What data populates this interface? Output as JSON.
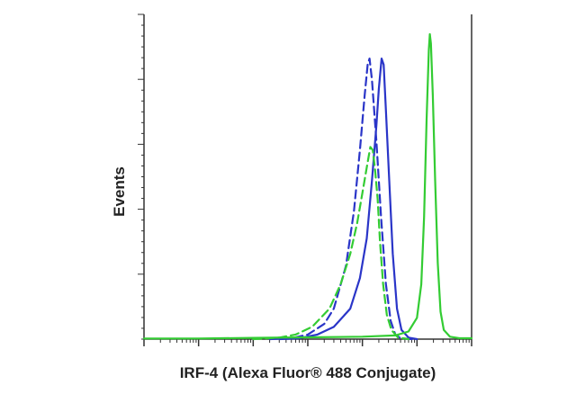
{
  "chart_data": {
    "type": "line",
    "title": "",
    "xlabel": "IRF-4 (Alexa Fluor® 488 Conjugate)",
    "ylabel": "Events",
    "x_scale": "log",
    "xlim": [
      1,
      1000000
    ],
    "ylim": [
      0,
      100
    ],
    "grid": false,
    "legend": "none",
    "series": [
      {
        "color": "#2a35c8",
        "dash": "dashed",
        "points": [
          [
            200,
            0
          ],
          [
            500,
            0.3
          ],
          [
            1000,
            1.5
          ],
          [
            2000,
            5
          ],
          [
            3000,
            10
          ],
          [
            5000,
            24
          ],
          [
            7000,
            42
          ],
          [
            9000,
            62
          ],
          [
            11000,
            80
          ],
          [
            12500,
            90
          ],
          [
            13500,
            92
          ],
          [
            15000,
            85
          ],
          [
            18000,
            65
          ],
          [
            22000,
            40
          ],
          [
            27000,
            18
          ],
          [
            33000,
            6
          ],
          [
            40000,
            1.5
          ],
          [
            50000,
            0.3
          ],
          [
            80000,
            0
          ]
        ]
      },
      {
        "color": "#2a35c8",
        "dash": "solid",
        "points": [
          [
            300,
            0
          ],
          [
            700,
            0.3
          ],
          [
            1500,
            1.5
          ],
          [
            3000,
            4
          ],
          [
            6000,
            10
          ],
          [
            9000,
            20
          ],
          [
            12000,
            33
          ],
          [
            15000,
            52
          ],
          [
            18000,
            70
          ],
          [
            20000,
            82
          ],
          [
            22500,
            92
          ],
          [
            24500,
            90
          ],
          [
            27000,
            75
          ],
          [
            31000,
            52
          ],
          [
            36000,
            28
          ],
          [
            43000,
            10
          ],
          [
            52000,
            3
          ],
          [
            70000,
            0.5
          ],
          [
            100000,
            0
          ]
        ]
      },
      {
        "color": "#33cc33",
        "dash": "dashed",
        "points": [
          [
            100,
            0
          ],
          [
            300,
            0.5
          ],
          [
            600,
            1.5
          ],
          [
            1200,
            4
          ],
          [
            2500,
            10
          ],
          [
            4000,
            18
          ],
          [
            6000,
            28
          ],
          [
            8000,
            38
          ],
          [
            10000,
            48
          ],
          [
            12500,
            58
          ],
          [
            14000,
            63
          ],
          [
            15500,
            62
          ],
          [
            17000,
            56
          ],
          [
            19000,
            46
          ],
          [
            21000,
            32
          ],
          [
            24000,
            18
          ],
          [
            28000,
            8
          ],
          [
            34000,
            3
          ],
          [
            45000,
            0.5
          ],
          [
            70000,
            0
          ]
        ]
      },
      {
        "color": "#33cc33",
        "dash": "solid",
        "points": [
          [
            1,
            0.2
          ],
          [
            10,
            0.2
          ],
          [
            100,
            0.4
          ],
          [
            1000,
            0.6
          ],
          [
            10000,
            0.8
          ],
          [
            40000,
            1.2
          ],
          [
            70000,
            2.5
          ],
          [
            100000,
            7
          ],
          [
            120000,
            18
          ],
          [
            135000,
            40
          ],
          [
            150000,
            72
          ],
          [
            165000,
            95
          ],
          [
            172000,
            100
          ],
          [
            180000,
            97
          ],
          [
            195000,
            80
          ],
          [
            215000,
            52
          ],
          [
            240000,
            25
          ],
          [
            270000,
            9
          ],
          [
            310000,
            3
          ],
          [
            400000,
            0.8
          ],
          [
            600000,
            0.3
          ],
          [
            1000000,
            0.3
          ]
        ]
      }
    ]
  }
}
